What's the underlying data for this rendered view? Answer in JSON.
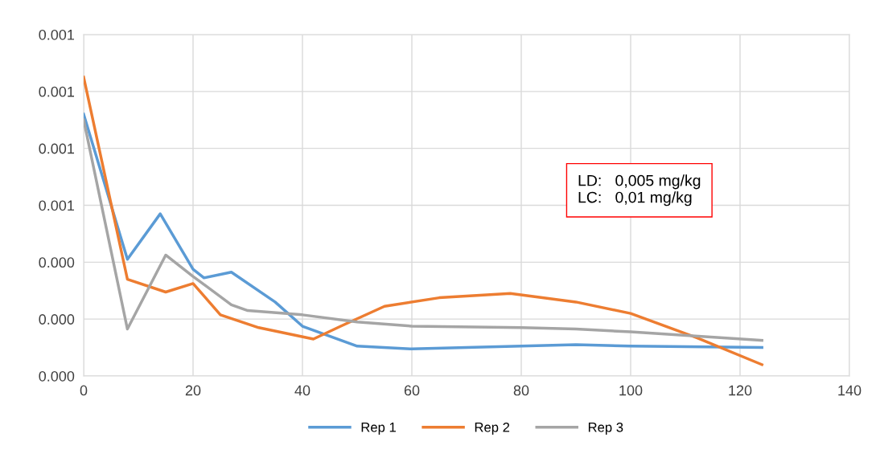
{
  "chart_data": {
    "type": "line",
    "x": [
      0,
      8,
      14,
      20,
      22,
      27,
      35,
      40,
      50,
      60,
      80,
      90,
      100,
      124
    ],
    "series": [
      {
        "name": "Rep 1",
        "color": "#5b9bd5",
        "values": [
          0.00092,
          0.00041,
          0.00057,
          0.000375,
          0.000345,
          0.000365,
          0.00026,
          0.000175,
          0.000105,
          9.5e-05,
          0.000105,
          0.00011,
          0.000105,
          0.0001
        ]
      },
      {
        "name": "Rep 2",
        "color": "#ed7d31",
        "x": [
          0,
          8,
          15,
          20,
          25,
          32,
          42,
          47,
          55,
          65,
          78,
          90,
          100,
          112,
          124
        ],
        "values": [
          0.00105,
          0.00034,
          0.000295,
          0.000325,
          0.000215,
          0.00017,
          0.00013,
          0.000175,
          0.000245,
          0.000275,
          0.00029,
          0.00026,
          0.00022,
          0.000135,
          4e-05
        ]
      },
      {
        "name": "Rep 3",
        "color": "#a5a5a5",
        "x": [
          0,
          8,
          15,
          20,
          27,
          30,
          40,
          50,
          60,
          80,
          90,
          100,
          124
        ],
        "values": [
          0.0009,
          0.000165,
          0.000425,
          0.00035,
          0.00025,
          0.00023,
          0.000215,
          0.00019,
          0.000175,
          0.00017,
          0.000165,
          0.000155,
          0.000125
        ]
      }
    ],
    "xlim": [
      0,
      140
    ],
    "xticks": [
      0,
      20,
      40,
      60,
      80,
      100,
      120,
      140
    ],
    "ylim": [
      0,
      0.0012
    ],
    "yticks": [
      {
        "value": 0,
        "label": "0.000"
      },
      {
        "value": 0.0002,
        "label": "0.000"
      },
      {
        "value": 0.0004,
        "label": "0.000"
      },
      {
        "value": 0.0006,
        "label": "0.001"
      },
      {
        "value": 0.0008,
        "label": "0.001"
      },
      {
        "value": 0.001,
        "label": "0.001"
      },
      {
        "value": 0.0012,
        "label": "0.001"
      }
    ],
    "grid": true,
    "legend": "bottom",
    "marker": "none",
    "line_style": "solid",
    "annotations": [
      "LD:   0,005 mg/kg\nLC:   0,01 mg/kg"
    ]
  }
}
